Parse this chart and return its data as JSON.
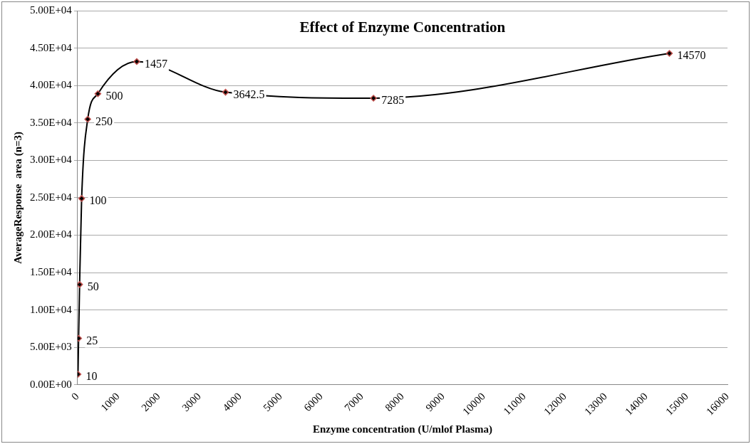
{
  "chart_data": {
    "type": "line",
    "title": "Effect of Enzyme Concentration",
    "xlabel": "Enzyme concentration (U/mlof Plasma)",
    "ylabel": "AverageResponse  area (n=3)",
    "x": [
      10,
      25,
      50,
      100,
      250,
      500,
      1457,
      3642.5,
      7285,
      14570
    ],
    "series": [
      {
        "color": "#000000",
        "values": [
          1400,
          6200,
          13400,
          24900,
          35500,
          38900,
          43200,
          39100,
          38300,
          44300
        ]
      }
    ],
    "annotations": [
      {
        "text": "10",
        "x": 10,
        "y": 1400
      },
      {
        "text": "25",
        "x": 25,
        "y": 6200
      },
      {
        "text": "50",
        "x": 50,
        "y": 13400
      },
      {
        "text": "100",
        "x": 100,
        "y": 24900
      },
      {
        "text": "250",
        "x": 250,
        "y": 35500
      },
      {
        "text": "500",
        "x": 500,
        "y": 38900
      },
      {
        "text": "1457",
        "x": 1457,
        "y": 43200
      },
      {
        "text": "3642.5",
        "x": 3642.5,
        "y": 39100
      },
      {
        "text": "7285",
        "x": 7285,
        "y": 38300
      },
      {
        "text": "14570",
        "x": 14570,
        "y": 44300
      }
    ],
    "xlim": [
      0,
      16000
    ],
    "xticks": [
      0,
      1000,
      2000,
      3000,
      4000,
      5000,
      6000,
      7000,
      8000,
      9000,
      10000,
      11000,
      12000,
      13000,
      14000,
      15000,
      16000
    ],
    "ylim": [
      0,
      50000
    ],
    "yticks": [
      {
        "value": 0,
        "label": "0.00E+00"
      },
      {
        "value": 5000,
        "label": "5.00E+03"
      },
      {
        "value": 10000,
        "label": "1.00E+04"
      },
      {
        "value": 15000,
        "label": "1.50E+04"
      },
      {
        "value": 20000,
        "label": "2.00E+04"
      },
      {
        "value": 25000,
        "label": "2.50E+04"
      },
      {
        "value": 30000,
        "label": "3.00E+04"
      },
      {
        "value": 35000,
        "label": "3.50E+04"
      },
      {
        "value": 40000,
        "label": "4.00E+04"
      },
      {
        "value": 45000,
        "label": "4.50E+04"
      },
      {
        "value": 50000,
        "label": "5.00E+04"
      }
    ],
    "grid": "y",
    "marker": "diamond",
    "line_style": "solid"
  }
}
